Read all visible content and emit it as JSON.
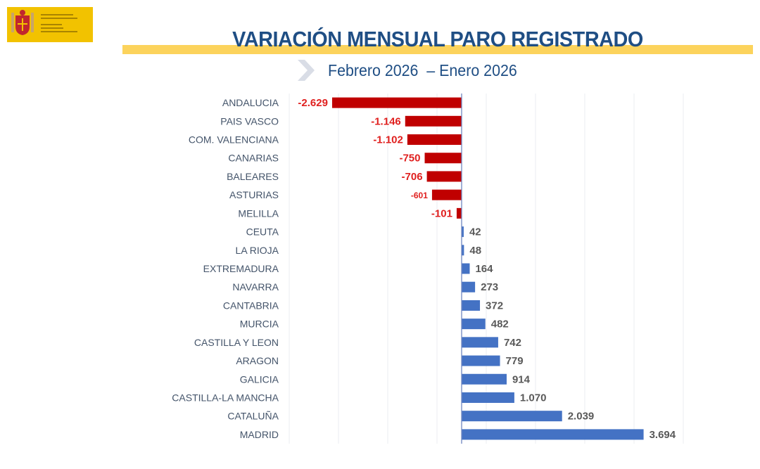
{
  "header": {
    "logo": "Vicepresidencia Segunda del Gobierno · Ministerio de Trabajo y Economía Social",
    "title": "VARIACIÓN MENSUAL PARO REGISTRADO",
    "subtitle": "Febrero 2026  – Enero 2026"
  },
  "colors": {
    "negative": "#c00000",
    "positive": "#4472c4",
    "negative_label": "#e0201f",
    "positive_label": "#595959",
    "title": "#1f4e84",
    "band": "#fcd35c",
    "category_label": "#44546a"
  },
  "chart_data": {
    "type": "bar",
    "orientation": "horizontal",
    "title": "VARIACIÓN MENSUAL PARO REGISTRADO",
    "subtitle": "Febrero 2026  – Enero 2026",
    "xlabel": "",
    "ylabel": "",
    "xlim": [
      -3500,
      4500
    ],
    "grid_step": 1000,
    "grid": true,
    "categories": [
      "ANDALUCIA",
      "PAIS VASCO",
      "COM. VALENCIANA",
      "CANARIAS",
      "BALEARES",
      "ASTURIAS",
      "MELILLA",
      "CEUTA",
      "LA RIOJA",
      "EXTREMADURA",
      "NAVARRA",
      "CANTABRIA",
      "MURCIA",
      "CASTILLA Y LEON",
      "ARAGON",
      "GALICIA",
      "CASTILLA-LA MANCHA",
      "CATALUÑA",
      "MADRID"
    ],
    "values": [
      -2629,
      -1146,
      -1102,
      -750,
      -706,
      -601,
      -101,
      42,
      48,
      164,
      273,
      372,
      482,
      742,
      779,
      914,
      1070,
      2039,
      3694
    ],
    "data_labels": [
      "-2.629",
      "-1.146",
      "-1.102",
      "-750",
      "-706",
      "-601",
      "-101",
      "42",
      "48",
      "164",
      "273",
      "372",
      "482",
      "742",
      "779",
      "914",
      "1.070",
      "2.039",
      "3.694"
    ]
  }
}
